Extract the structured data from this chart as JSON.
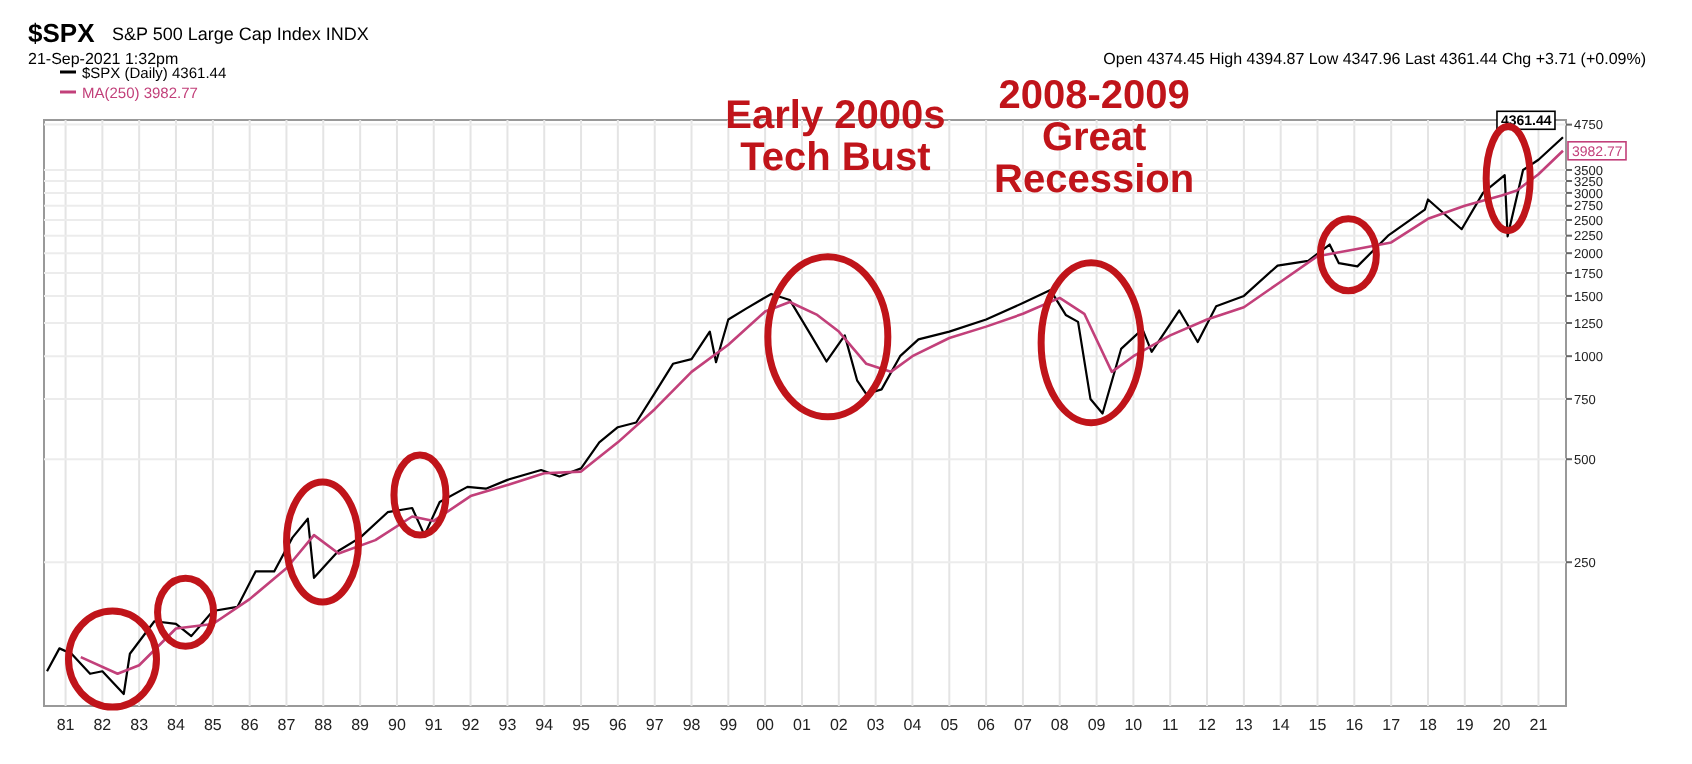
{
  "chart_data": {
    "type": "line",
    "title": "$SPX",
    "subtitle": "S&P 500 Large Cap Index INDX",
    "annotations": [
      "21-Sep-2021 1:32pm",
      "Open 4374.45 High 4394.87 Low 4347.96 Last 4361.44 Chg +3.71 (+0.09%)",
      "Early 2000s\nTech Bust",
      "2008-2009\nGreat\nRecession"
    ],
    "xlim": [
      "1980-06",
      "2021-10"
    ],
    "xticks": [
      {
        "value": "1981",
        "label": "81"
      },
      {
        "value": "1982",
        "label": "82"
      },
      {
        "value": "1983",
        "label": "83"
      },
      {
        "value": "1984",
        "label": "84"
      },
      {
        "value": "1985",
        "label": "85"
      },
      {
        "value": "1986",
        "label": "86"
      },
      {
        "value": "1987",
        "label": "87"
      },
      {
        "value": "1988",
        "label": "88"
      },
      {
        "value": "1989",
        "label": "89"
      },
      {
        "value": "1990",
        "label": "90"
      },
      {
        "value": "1991",
        "label": "91"
      },
      {
        "value": "1992",
        "label": "92"
      },
      {
        "value": "1993",
        "label": "93"
      },
      {
        "value": "1994",
        "label": "94"
      },
      {
        "value": "1995",
        "label": "95"
      },
      {
        "value": "1996",
        "label": "96"
      },
      {
        "value": "1997",
        "label": "97"
      },
      {
        "value": "1998",
        "label": "98"
      },
      {
        "value": "1999",
        "label": "99"
      },
      {
        "value": "2000",
        "label": "00"
      },
      {
        "value": "2001",
        "label": "01"
      },
      {
        "value": "2002",
        "label": "02"
      },
      {
        "value": "2003",
        "label": "03"
      },
      {
        "value": "2004",
        "label": "04"
      },
      {
        "value": "2005",
        "label": "05"
      },
      {
        "value": "2006",
        "label": "06"
      },
      {
        "value": "2007",
        "label": "07"
      },
      {
        "value": "2008",
        "label": "08"
      },
      {
        "value": "2009",
        "label": "09"
      },
      {
        "value": "2010",
        "label": "10"
      },
      {
        "value": "2011",
        "label": "11"
      },
      {
        "value": "2012",
        "label": "12"
      },
      {
        "value": "2013",
        "label": "13"
      },
      {
        "value": "2014",
        "label": "14"
      },
      {
        "value": "2015",
        "label": "15"
      },
      {
        "value": "2016",
        "label": "16"
      },
      {
        "value": "2017",
        "label": "17"
      },
      {
        "value": "2018",
        "label": "18"
      },
      {
        "value": "2019",
        "label": "19"
      },
      {
        "value": "2020",
        "label": "20"
      },
      {
        "value": "2021",
        "label": "21"
      }
    ],
    "ylim": [
      95,
      4900
    ],
    "log": "y",
    "yticks": [
      250,
      500,
      750,
      1000,
      1250,
      1500,
      1750,
      2000,
      2250,
      2500,
      2750,
      3000,
      3250,
      3500,
      4750
    ],
    "grid": true,
    "legend": "top left",
    "marker": "none",
    "line_style": "solid",
    "series": [
      {
        "name": "$SPX (Daily) 4361.44",
        "color": "#000000",
        "x": [
          "1980-07",
          "1980-11",
          "1981-03",
          "1981-09",
          "1982-01",
          "1982-08",
          "1982-10",
          "1983-06",
          "1984-01",
          "1984-06",
          "1985-01",
          "1985-09",
          "1986-03",
          "1986-09",
          "1987-03",
          "1987-08",
          "1987-10",
          "1988-06",
          "1989-01",
          "1989-10",
          "1990-06",
          "1990-10",
          "1991-03",
          "1991-12",
          "1992-06",
          "1993-01",
          "1993-12",
          "1994-06",
          "1995-01",
          "1995-07",
          "1996-01",
          "1996-07",
          "1997-01",
          "1997-07",
          "1998-01",
          "1998-07",
          "1998-09",
          "1999-01",
          "1999-07",
          "2000-03",
          "2000-09",
          "2001-04",
          "2001-09",
          "2002-03",
          "2002-07",
          "2002-10",
          "2003-03",
          "2003-09",
          "2004-03",
          "2005-01",
          "2006-01",
          "2007-01",
          "2007-10",
          "2008-03",
          "2008-07",
          "2008-11",
          "2009-03",
          "2009-09",
          "2010-04",
          "2010-07",
          "2011-04",
          "2011-10",
          "2012-04",
          "2013-01",
          "2013-12",
          "2014-10",
          "2015-05",
          "2015-08",
          "2016-02",
          "2016-12",
          "2017-12",
          "2018-01",
          "2018-12",
          "2019-07",
          "2020-02",
          "2020-03",
          "2020-08",
          "2021-01",
          "2021-09"
        ],
        "values": [
          120,
          140,
          135,
          118,
          120,
          103,
          135,
          168,
          165,
          152,
          180,
          185,
          235,
          235,
          295,
          335,
          225,
          270,
          295,
          350,
          360,
          300,
          375,
          415,
          410,
          435,
          465,
          445,
          470,
          560,
          620,
          640,
          780,
          950,
          980,
          1180,
          960,
          1280,
          1380,
          1520,
          1460,
          1150,
          965,
          1150,
          850,
          775,
          800,
          1000,
          1120,
          1180,
          1280,
          1430,
          1560,
          1320,
          1260,
          750,
          680,
          1050,
          1200,
          1030,
          1360,
          1100,
          1400,
          1500,
          1840,
          1900,
          2120,
          1870,
          1830,
          2250,
          2680,
          2870,
          2350,
          3000,
          3380,
          2240,
          3500,
          3750,
          4361.44
        ],
        "value_labels": [
          null,
          null,
          null,
          null,
          null,
          null,
          null,
          null,
          null,
          null,
          null,
          null,
          null,
          null,
          null,
          null,
          null,
          null,
          null,
          null,
          null,
          null,
          null,
          null,
          null,
          null,
          null,
          null,
          null,
          null,
          null,
          null,
          null,
          null,
          null,
          null,
          null,
          null,
          null,
          null,
          null,
          null,
          null,
          null,
          null,
          null,
          null,
          null,
          null,
          null,
          null,
          null,
          null,
          null,
          null,
          null,
          null,
          null,
          null,
          null,
          null,
          null,
          null,
          null,
          null,
          null,
          null,
          null,
          null,
          null,
          null,
          null,
          null,
          null,
          null,
          null,
          null,
          null,
          "4361.44"
        ]
      },
      {
        "name": "MA(250) 3982.77",
        "color": "#c2407a",
        "x": [
          "1981-06",
          "1982-06",
          "1983-01",
          "1984-01",
          "1985-01",
          "1986-01",
          "1987-01",
          "1987-10",
          "1988-06",
          "1989-06",
          "1990-06",
          "1991-01",
          "1992-01",
          "1993-01",
          "1994-01",
          "1995-01",
          "1996-01",
          "1997-01",
          "1998-01",
          "1999-01",
          "2000-01",
          "2000-09",
          "2001-06",
          "2002-01",
          "2002-10",
          "2003-06",
          "2004-01",
          "2005-01",
          "2006-01",
          "2007-01",
          "2008-01",
          "2008-09",
          "2009-06",
          "2010-01",
          "2011-01",
          "2012-01",
          "2013-01",
          "2014-01",
          "2015-01",
          "2016-01",
          "2017-01",
          "2018-01",
          "2019-01",
          "2020-01",
          "2020-06",
          "2021-01",
          "2021-09"
        ],
        "values": [
          132,
          118,
          125,
          160,
          165,
          195,
          240,
          300,
          265,
          290,
          340,
          330,
          390,
          420,
          455,
          460,
          560,
          700,
          900,
          1080,
          1350,
          1440,
          1320,
          1180,
          950,
          900,
          1000,
          1130,
          1220,
          1330,
          1480,
          1330,
          900,
          1000,
          1150,
          1280,
          1390,
          1650,
          1960,
          2050,
          2150,
          2520,
          2750,
          2950,
          3050,
          3400,
          3982.77
        ],
        "value_labels": [
          null,
          null,
          null,
          null,
          null,
          null,
          null,
          null,
          null,
          null,
          null,
          null,
          null,
          null,
          null,
          null,
          null,
          null,
          null,
          null,
          null,
          null,
          null,
          null,
          null,
          null,
          null,
          null,
          null,
          null,
          null,
          null,
          null,
          null,
          null,
          null,
          null,
          null,
          null,
          null,
          null,
          null,
          null,
          null,
          null,
          null,
          "3982.77"
        ]
      }
    ]
  }
}
